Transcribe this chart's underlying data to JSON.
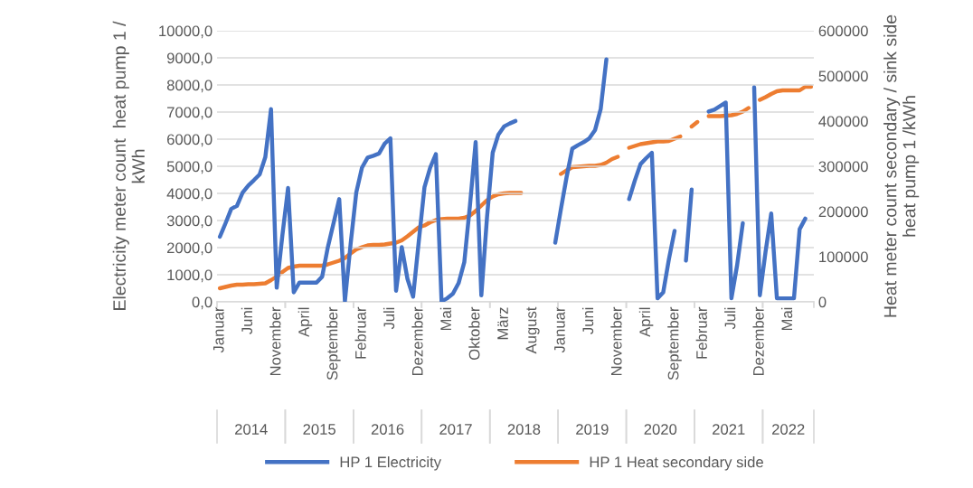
{
  "chart_data": {
    "type": "line",
    "categories": [
      "Januar",
      null,
      null,
      null,
      null,
      "Juni",
      null,
      null,
      null,
      null,
      "November",
      null,
      null,
      null,
      null,
      "April",
      null,
      null,
      null,
      null,
      "September",
      null,
      null,
      null,
      null,
      "Februar",
      null,
      null,
      null,
      null,
      "Juli",
      null,
      null,
      null,
      null,
      "Dezember",
      null,
      null,
      null,
      null,
      "Mai",
      null,
      null,
      null,
      null,
      "Oktober",
      null,
      null,
      null,
      null,
      "März",
      null,
      null,
      null,
      null,
      "August",
      null,
      null,
      null,
      null,
      "Januar",
      null,
      null,
      null,
      null,
      "Juni",
      null,
      null,
      null,
      null,
      "November",
      null,
      null,
      null,
      null,
      "April",
      null,
      null,
      null,
      null,
      "September",
      null,
      null,
      null,
      null,
      "Februar",
      null,
      null,
      null,
      null,
      "Juli",
      null,
      null,
      null,
      null,
      "Dezember",
      null,
      null,
      null,
      null,
      "Mai",
      null,
      null,
      null,
      null
    ],
    "series": [
      {
        "name": "HP 1 Electricity",
        "color": "#4472c4",
        "values": [
          2400,
          2900,
          3430,
          3540,
          4030,
          4290,
          4490,
          4700,
          5340,
          7110,
          520,
          2460,
          4200,
          350,
          710,
          710,
          710,
          710,
          930,
          2020,
          2900,
          3790,
          20,
          2130,
          4030,
          4950,
          5320,
          5390,
          5470,
          5840,
          6030,
          410,
          2020,
          850,
          190,
          2240,
          4230,
          4950,
          5450,
          20,
          130,
          300,
          690,
          1460,
          3560,
          5890,
          240,
          3120,
          5500,
          6170,
          6470,
          6580,
          6670,
          null,
          null,
          null,
          null,
          null,
          null,
          2180,
          3420,
          4600,
          5650,
          5780,
          5890,
          6030,
          6330,
          7110,
          8940,
          null,
          null,
          null,
          3790,
          4470,
          5080,
          5300,
          5500,
          130,
          350,
          1570,
          2620,
          null,
          1520,
          4140,
          null,
          null,
          7020,
          7090,
          7220,
          7350,
          130,
          1350,
          2900,
          null,
          7910,
          240,
          1840,
          3260,
          130,
          130,
          130,
          130,
          2680,
          3070,
          null
        ]
      },
      {
        "name": "HP 1 Heat secondary side",
        "color": "#ed7d31",
        "axis": "y2",
        "values": [
          30000,
          33000,
          36000,
          38000,
          38000,
          39000,
          39000,
          40000,
          41000,
          48000,
          56000,
          66000,
          75000,
          78000,
          80000,
          80000,
          80000,
          80000,
          80000,
          83000,
          87000,
          91000,
          97000,
          107000,
          116000,
          121000,
          125000,
          126000,
          126000,
          127000,
          129000,
          131000,
          136000,
          145000,
          155000,
          165000,
          169000,
          176000,
          181000,
          183000,
          184000,
          184000,
          184000,
          186000,
          191000,
          201000,
          213000,
          225000,
          233000,
          238000,
          240000,
          241000,
          241000,
          241000,
          null,
          null,
          null,
          null,
          null,
          null,
          283000,
          291000,
          298000,
          299000,
          300000,
          301000,
          301000,
          303000,
          308000,
          316000,
          321000,
          null,
          341000,
          345000,
          349000,
          351000,
          353000,
          355000,
          355000,
          356000,
          361000,
          366000,
          null,
          388000,
          398000,
          null,
          411000,
          411000,
          411000,
          412000,
          413000,
          416000,
          421000,
          429000,
          null,
          447000,
          453000,
          460000,
          466000,
          468000,
          468000,
          468000,
          468000,
          476000,
          476000
        ]
      }
    ],
    "ylabel": "Electricity meter count  heat pump 1 /\nkWh",
    "y2label": "Heat meter count secondary / sink side\nheat pump 1 /kWh",
    "ylim": [
      0,
      10000
    ],
    "yticks": [
      {
        "value": 0,
        "label": "0,0"
      },
      {
        "value": 1000,
        "label": "1000,0"
      },
      {
        "value": 2000,
        "label": "2000,0"
      },
      {
        "value": 3000,
        "label": "3000,0"
      },
      {
        "value": 4000,
        "label": "4000,0"
      },
      {
        "value": 5000,
        "label": "5000,0"
      },
      {
        "value": 6000,
        "label": "6000,0"
      },
      {
        "value": 7000,
        "label": "7000,0"
      },
      {
        "value": 8000,
        "label": "8000,0"
      },
      {
        "value": 9000,
        "label": "9000,0"
      },
      {
        "value": 10000,
        "label": "10000,0"
      }
    ],
    "y2lim": [
      0,
      600000
    ],
    "y2ticks": [
      0,
      100000,
      200000,
      300000,
      400000,
      500000,
      600000
    ],
    "annotations": [
      "2014",
      "2015",
      "2016",
      "2017",
      "2018",
      "2019",
      "2020",
      "2021",
      "2022"
    ],
    "grid": "y",
    "legend": "bottom",
    "marker": "none",
    "line_style": "solid"
  }
}
